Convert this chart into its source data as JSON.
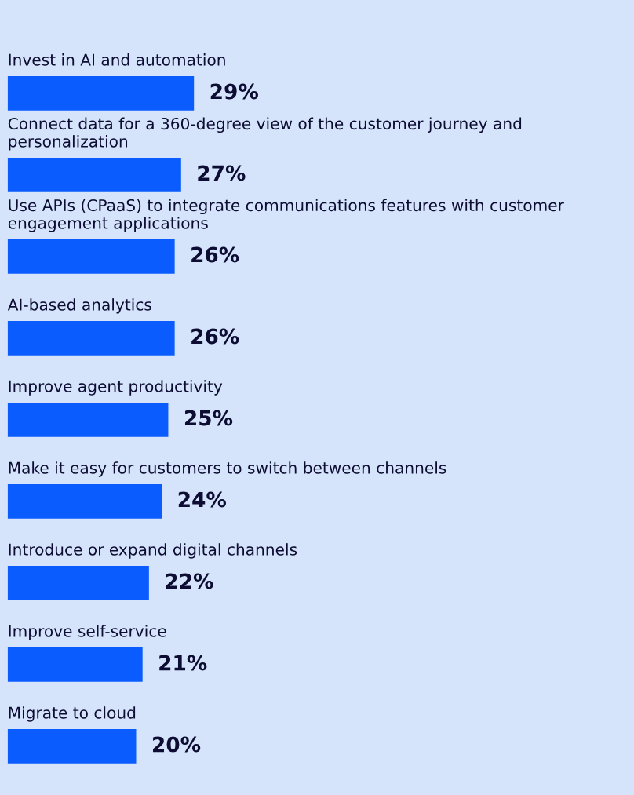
{
  "chart_data": {
    "type": "bar",
    "orientation": "horizontal",
    "categories": [
      "Invest in AI and automation",
      "Connect data for a 360-degree view of the customer journey and personalization",
      "Use APIs (CPaaS) to integrate communications features with customer engagement applications",
      "AI-based analytics",
      "Improve agent productivity",
      "Make it easy for customers to switch between channels",
      "Introduce or expand digital channels",
      "Improve self-service",
      "Migrate to cloud"
    ],
    "values": [
      29,
      27,
      26,
      26,
      25,
      24,
      22,
      21,
      20
    ],
    "value_labels": [
      "29%",
      "27%",
      "26%",
      "26%",
      "25%",
      "24%",
      "22%",
      "21%",
      "20%"
    ],
    "color": "#0a5cff"
  }
}
